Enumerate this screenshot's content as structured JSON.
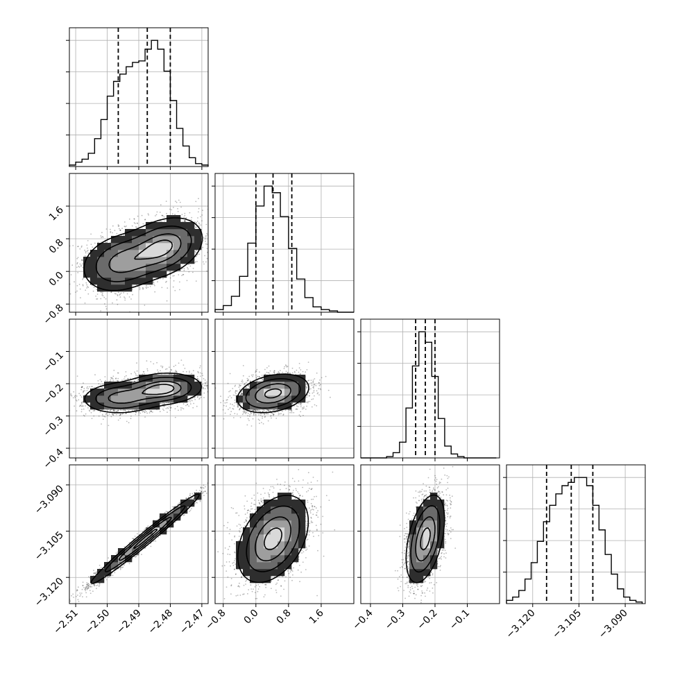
{
  "chart_data": {
    "type": "corner",
    "parameters": [
      {
        "axis_index": 0,
        "range": [
          -2.512,
          -2.468
        ],
        "ticks": [
          -2.51,
          -2.5,
          -2.49,
          -2.48,
          -2.47
        ],
        "tick_labels": [
          "−2.51",
          "−2.50",
          "−2.49",
          "−2.48",
          "−2.47"
        ],
        "quantiles": [
          -2.4965,
          -2.4873,
          -2.48
        ],
        "mean": -2.488,
        "std": 0.0085
      },
      {
        "axis_index": 1,
        "range": [
          -1.0,
          2.4
        ],
        "ticks": [
          -0.8,
          0.0,
          0.8,
          1.6
        ],
        "tick_labels": [
          "−0.8",
          "0.0",
          "0.8",
          "1.6"
        ],
        "quantiles": [
          0.0,
          0.42,
          0.88
        ],
        "mean": 0.42,
        "std": 0.44
      },
      {
        "axis_index": 2,
        "range": [
          -0.43,
          0.0
        ],
        "ticks": [
          -0.4,
          -0.3,
          -0.2,
          -0.1
        ],
        "tick_labels": [
          "−0.4",
          "−0.3",
          "−0.2",
          "−0.1"
        ],
        "quantiles": [
          -0.26,
          -0.23,
          -0.2
        ],
        "mean": -0.23,
        "std": 0.03
      },
      {
        "axis_index": 3,
        "range": [
          -3.1285,
          -3.0835
        ],
        "ticks": [
          -3.12,
          -3.105,
          -3.09
        ],
        "tick_labels": [
          "−3.120",
          "−3.105",
          "−3.090"
        ],
        "quantiles": [
          -3.1155,
          -3.1075,
          -3.1005
        ],
        "mean": -3.1075,
        "std": 0.0072
      }
    ],
    "histograms": [
      {
        "param": 0,
        "bins": [
          -2.511,
          -2.509,
          -2.507,
          -2.505,
          -2.503,
          -2.501,
          -2.499,
          -2.497,
          -2.495,
          -2.493,
          -2.491,
          -2.489,
          -2.487,
          -2.485,
          -2.483,
          -2.481,
          -2.479,
          -2.477,
          -2.475,
          -2.473,
          -2.471,
          -2.469
        ],
        "counts": [
          1,
          3,
          5,
          9,
          19,
          32,
          48,
          58,
          63,
          68,
          71,
          72,
          80,
          86,
          80,
          65,
          45,
          26,
          14,
          6,
          2,
          1
        ]
      },
      {
        "param": 1,
        "bins": [
          -0.9,
          -0.7,
          -0.5,
          -0.3,
          -0.1,
          0.1,
          0.3,
          0.5,
          0.7,
          0.9,
          1.1,
          1.3,
          1.5,
          1.7,
          1.9,
          2.1,
          2.3
        ],
        "counts": [
          2,
          5,
          12,
          27,
          52,
          80,
          95,
          90,
          72,
          48,
          25,
          11,
          4,
          2,
          1,
          0,
          0
        ]
      },
      {
        "param": 2,
        "bins": [
          -0.42,
          -0.4,
          -0.38,
          -0.36,
          -0.34,
          -0.32,
          -0.3,
          -0.28,
          -0.26,
          -0.24,
          -0.22,
          -0.2,
          -0.18,
          -0.16,
          -0.14,
          -0.12,
          -0.1,
          -0.08,
          -0.06,
          -0.04,
          -0.02
        ],
        "counts": [
          0,
          0,
          0,
          0,
          1,
          4,
          12,
          38,
          70,
          96,
          88,
          62,
          30,
          9,
          3,
          1,
          0,
          0,
          0,
          0,
          0
        ]
      },
      {
        "param": 3,
        "bins": [
          -3.1275,
          -3.1255,
          -3.1235,
          -3.1215,
          -3.1195,
          -3.1175,
          -3.1155,
          -3.1135,
          -3.1115,
          -3.1095,
          -3.1075,
          -3.1055,
          -3.1035,
          -3.1015,
          -3.0995,
          -3.0975,
          -3.0955,
          -3.0935,
          -3.0915,
          -3.0895,
          -3.0875,
          -3.0855
        ],
        "counts": [
          2,
          4,
          8,
          15,
          25,
          38,
          50,
          60,
          67,
          72,
          74,
          77,
          77,
          72,
          60,
          45,
          30,
          18,
          9,
          4,
          2,
          1
        ]
      }
    ],
    "pairs": [
      {
        "row": 1,
        "col": 0,
        "components": [
          {
            "w": 0.55,
            "mx": -2.482,
            "my": 0.6,
            "sx": 0.0065,
            "sy": 0.38,
            "rho": 0.3
          },
          {
            "w": 0.45,
            "mx": -2.496,
            "my": 0.2,
            "sx": 0.0065,
            "sy": 0.38,
            "rho": 0.2
          }
        ]
      },
      {
        "row": 2,
        "col": 0,
        "components": [
          {
            "w": 0.55,
            "mx": -2.482,
            "my": -0.215,
            "sx": 0.0065,
            "sy": 0.026,
            "rho": 0.1
          },
          {
            "w": 0.45,
            "mx": -2.496,
            "my": -0.245,
            "sx": 0.0065,
            "sy": 0.026,
            "rho": 0.05
          }
        ]
      },
      {
        "row": 2,
        "col": 1,
        "components": [
          {
            "w": 1.0,
            "mx": 0.42,
            "my": -0.23,
            "sx": 0.44,
            "sy": 0.03,
            "rho": 0.3
          }
        ]
      },
      {
        "row": 3,
        "col": 0,
        "components": [
          {
            "w": 1.0,
            "mx": -2.488,
            "my": -3.1075,
            "sx": 0.0085,
            "sy": 0.0072,
            "rho": 0.985
          }
        ]
      },
      {
        "row": 3,
        "col": 1,
        "components": [
          {
            "w": 1.0,
            "mx": 0.42,
            "my": -3.1075,
            "sx": 0.44,
            "sy": 0.0072,
            "rho": 0.4
          }
        ]
      },
      {
        "row": 3,
        "col": 2,
        "components": [
          {
            "w": 1.0,
            "mx": -0.23,
            "my": -3.1075,
            "sx": 0.03,
            "sy": 0.0072,
            "rho": 0.45
          }
        ]
      }
    ],
    "contour_levels_sigma": [
      0.5,
      1.0,
      1.5,
      2.0
    ],
    "grid": true,
    "colors": {
      "line": "#000000",
      "grid": "#b0b0b0",
      "points": "#000000"
    }
  }
}
